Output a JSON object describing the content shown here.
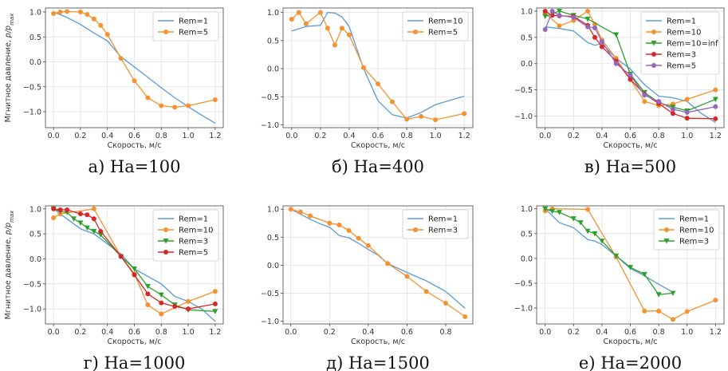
{
  "chart_data": [
    {
      "type": "line",
      "caption": "а) Ha=100",
      "xlabel": "Скорость, м/с",
      "ylabel": "Мгнитное давление, p/p_max",
      "xlim": [
        -0.06,
        1.26
      ],
      "ylim": [
        -1.32,
        1.08
      ],
      "xticks": [
        0.0,
        0.2,
        0.4,
        0.6,
        0.8,
        1.0,
        1.2
      ],
      "yticks": [
        1.0,
        0.5,
        0.0,
        -0.5,
        -1.0
      ],
      "legend_position": "top-right",
      "grid": true,
      "series": [
        {
          "name": "Rem=1",
          "color": "#5b9bd5",
          "marker": "none",
          "x": [
            0,
            0.1,
            0.2,
            0.3,
            0.4,
            0.5,
            0.6,
            0.7,
            0.8,
            0.9,
            1.0,
            1.1,
            1.2
          ],
          "y": [
            1.0,
            0.89,
            0.75,
            0.58,
            0.42,
            0.1,
            -0.1,
            -0.31,
            -0.52,
            -0.72,
            -0.9,
            -1.07,
            -1.23
          ]
        },
        {
          "name": "Rem=5",
          "color": "#f5922f",
          "marker": "circle",
          "x": [
            0,
            0.05,
            0.1,
            0.2,
            0.25,
            0.3,
            0.35,
            0.4,
            0.5,
            0.6,
            0.7,
            0.8,
            0.9,
            1.0,
            1.2
          ],
          "y": [
            0.97,
            1.0,
            1.01,
            1.0,
            0.95,
            0.86,
            0.73,
            0.55,
            0.07,
            -0.38,
            -0.72,
            -0.88,
            -0.91,
            -0.88,
            -0.76
          ]
        }
      ]
    },
    {
      "type": "line",
      "caption": "б) Ha=400",
      "xlabel": "Скорость, м/с",
      "ylabel": "",
      "xlim": [
        -0.06,
        1.26
      ],
      "ylim": [
        -1.05,
        1.08
      ],
      "xticks": [
        0.0,
        0.2,
        0.4,
        0.6,
        0.8,
        1.0,
        1.2
      ],
      "yticks": [
        1.0,
        0.5,
        0.0,
        -0.5,
        -1.0
      ],
      "legend_position": "top-right",
      "grid": true,
      "series": [
        {
          "name": "Rem=10",
          "color": "#5b9bd5",
          "marker": "none",
          "x": [
            0,
            0.1,
            0.2,
            0.25,
            0.3,
            0.35,
            0.4,
            0.5,
            0.6,
            0.7,
            0.8,
            0.9,
            1.0,
            1.2
          ],
          "y": [
            0.67,
            0.75,
            0.77,
            1.0,
            0.99,
            0.92,
            0.75,
            0.0,
            -0.57,
            -0.82,
            -0.88,
            -0.78,
            -0.64,
            -0.49
          ]
        },
        {
          "name": "Rem=5",
          "color": "#f5922f",
          "marker": "circle",
          "x": [
            0,
            0.05,
            0.1,
            0.2,
            0.25,
            0.3,
            0.35,
            0.4,
            0.5,
            0.6,
            0.7,
            0.8,
            0.9,
            1.0,
            1.2
          ],
          "y": [
            0.88,
            1.0,
            0.8,
            1.0,
            0.72,
            0.42,
            0.72,
            0.6,
            0.02,
            -0.27,
            -0.59,
            -0.9,
            -0.85,
            -0.91,
            -0.8
          ]
        }
      ]
    },
    {
      "type": "line",
      "caption": "в) Ha=500",
      "xlabel": "Скорость, м/с",
      "ylabel": "",
      "xlim": [
        -0.06,
        1.26
      ],
      "ylim": [
        -1.22,
        1.06
      ],
      "xticks": [
        0.0,
        0.2,
        0.4,
        0.6,
        0.8,
        1.0,
        1.2
      ],
      "yticks": [
        1.0,
        0.5,
        0.0,
        -0.5,
        -1.0
      ],
      "legend_position": "top-right",
      "grid": true,
      "series": [
        {
          "name": "Rem=1",
          "color": "#5b9bd5",
          "marker": "none",
          "x": [
            0,
            0.1,
            0.2,
            0.3,
            0.35,
            0.4,
            0.5,
            0.6,
            0.7,
            0.8,
            0.9,
            1.0,
            1.1,
            1.2
          ],
          "y": [
            0.7,
            0.67,
            0.62,
            0.4,
            0.35,
            0.38,
            0.1,
            -0.1,
            -0.4,
            -0.62,
            -0.65,
            -0.72,
            -0.95,
            -1.12
          ]
        },
        {
          "name": "Rem=10",
          "color": "#f5922f",
          "marker": "circle",
          "x": [
            0,
            0.1,
            0.2,
            0.3,
            0.35,
            0.4,
            0.5,
            0.6,
            0.7,
            0.8,
            0.9,
            1.0,
            1.2
          ],
          "y": [
            0.96,
            0.72,
            0.82,
            1.0,
            0.75,
            0.45,
            0.1,
            -0.3,
            -0.72,
            -0.8,
            -0.77,
            -0.68,
            -0.5
          ]
        },
        {
          "name": "Rem=10=inf",
          "color": "#2ca02c",
          "marker": "triangle",
          "x": [
            0,
            0.1,
            0.2,
            0.3,
            0.5,
            0.6,
            0.7,
            0.8,
            0.9,
            1.0,
            1.2
          ],
          "y": [
            0.9,
            1.0,
            0.92,
            0.85,
            0.55,
            -0.2,
            -0.55,
            -0.74,
            -0.83,
            -0.9,
            -0.68
          ]
        },
        {
          "name": "Rem=3",
          "color": "#d62728",
          "marker": "circle",
          "x": [
            0,
            0.05,
            0.1,
            0.2,
            0.3,
            0.35,
            0.4,
            0.5,
            0.6,
            0.7,
            0.8,
            0.9,
            1.0,
            1.2
          ],
          "y": [
            1.0,
            0.92,
            0.91,
            0.9,
            0.73,
            0.5,
            0.32,
            0.05,
            -0.3,
            -0.58,
            -0.76,
            -0.95,
            -1.04,
            -1.05
          ]
        },
        {
          "name": "Rem=5",
          "color": "#9467bd",
          "marker": "circle",
          "x": [
            0,
            0.05,
            0.1,
            0.2,
            0.3,
            0.35,
            0.4,
            0.5,
            0.6,
            0.7,
            0.8,
            0.9,
            1.0,
            1.2
          ],
          "y": [
            0.65,
            1.0,
            0.92,
            0.88,
            0.7,
            0.68,
            0.42,
            0.0,
            -0.22,
            -0.6,
            -0.72,
            -0.87,
            -0.93,
            -0.82
          ]
        }
      ]
    },
    {
      "type": "line",
      "caption": "г) Ha=1000",
      "xlabel": "Скорость, м/с",
      "ylabel": "Мгнитное давление, p/p_max",
      "xlim": [
        -0.06,
        1.26
      ],
      "ylim": [
        -1.3,
        1.06
      ],
      "xticks": [
        0.0,
        0.2,
        0.4,
        0.6,
        0.8,
        1.0,
        1.2
      ],
      "yticks": [
        1.0,
        0.5,
        0.0,
        -0.5,
        -1.0
      ],
      "legend_position": "top-right",
      "grid": true,
      "series": [
        {
          "name": "Rem=1",
          "color": "#5b9bd5",
          "marker": "none",
          "x": [
            0,
            0.1,
            0.2,
            0.3,
            0.4,
            0.5,
            0.6,
            0.7,
            0.8,
            0.9,
            1.0,
            1.1,
            1.2
          ],
          "y": [
            1.0,
            0.8,
            0.6,
            0.5,
            0.3,
            0.1,
            -0.2,
            -0.35,
            -0.5,
            -0.75,
            -0.85,
            -1.0,
            -1.25
          ]
        },
        {
          "name": "Rem=10",
          "color": "#f5922f",
          "marker": "circle",
          "x": [
            0,
            0.05,
            0.3,
            0.5,
            0.6,
            0.7,
            0.8,
            1.0,
            1.2
          ],
          "y": [
            0.82,
            0.9,
            1.0,
            0.05,
            -0.3,
            -0.92,
            -1.1,
            -0.85,
            -0.65
          ]
        },
        {
          "name": "Rem=3",
          "color": "#2ca02c",
          "marker": "triangle",
          "x": [
            0,
            0.05,
            0.1,
            0.15,
            0.2,
            0.25,
            0.3,
            0.35,
            0.5,
            0.6,
            0.7,
            0.8,
            0.9,
            1.0,
            1.2
          ],
          "y": [
            1.0,
            0.95,
            0.93,
            0.8,
            0.72,
            0.62,
            0.55,
            0.48,
            0.05,
            -0.2,
            -0.55,
            -0.72,
            -0.92,
            -1.02,
            -1.05
          ]
        },
        {
          "name": "Rem=5",
          "color": "#d62728",
          "marker": "circle",
          "x": [
            0,
            0.05,
            0.1,
            0.2,
            0.25,
            0.3,
            0.35,
            0.5,
            0.6,
            0.7,
            0.8,
            0.9,
            1.0,
            1.2
          ],
          "y": [
            1.0,
            0.98,
            0.98,
            0.9,
            0.88,
            0.8,
            0.55,
            0.05,
            -0.32,
            -0.7,
            -0.88,
            -0.95,
            -1.0,
            -0.9
          ]
        }
      ]
    },
    {
      "type": "line",
      "caption": "д) Ha=1500",
      "xlabel": "Скорость, м/с",
      "ylabel": "",
      "xlim": [
        -0.04,
        0.94
      ],
      "ylim": [
        -1.05,
        1.06
      ],
      "xticks": [
        0.0,
        0.2,
        0.4,
        0.6,
        0.8
      ],
      "yticks": [
        1.0,
        0.5,
        0.0,
        -0.5,
        -1.0
      ],
      "legend_position": "top-right",
      "grid": true,
      "series": [
        {
          "name": "Rem=1",
          "color": "#5b9bd5",
          "marker": "none",
          "x": [
            0,
            0.1,
            0.15,
            0.2,
            0.25,
            0.3,
            0.35,
            0.4,
            0.45,
            0.5,
            0.6,
            0.7,
            0.8,
            0.9
          ],
          "y": [
            1.0,
            0.82,
            0.74,
            0.68,
            0.53,
            0.49,
            0.39,
            0.28,
            0.18,
            0.03,
            -0.13,
            -0.28,
            -0.47,
            -0.77
          ]
        },
        {
          "name": "Rem=3",
          "color": "#f5922f",
          "marker": "circle",
          "x": [
            0,
            0.05,
            0.1,
            0.2,
            0.25,
            0.3,
            0.35,
            0.4,
            0.5,
            0.6,
            0.7,
            0.8,
            0.9
          ],
          "y": [
            1.0,
            0.95,
            0.88,
            0.75,
            0.72,
            0.62,
            0.48,
            0.35,
            0.03,
            -0.2,
            -0.47,
            -0.68,
            -0.92
          ]
        }
      ]
    },
    {
      "type": "line",
      "caption": "е) Ha=2000",
      "xlabel": "Скорость, м/с",
      "ylabel": "",
      "xlim": [
        -0.06,
        1.26
      ],
      "ylim": [
        -1.32,
        1.06
      ],
      "xticks": [
        0.0,
        0.2,
        0.4,
        0.6,
        0.8,
        1.0,
        1.2
      ],
      "yticks": [
        1.0,
        0.5,
        0.0,
        -0.5,
        -1.0
      ],
      "legend_position": "top-right",
      "grid": true,
      "series": [
        {
          "name": "Rem=1",
          "color": "#5b9bd5",
          "marker": "none",
          "x": [
            0,
            0.1,
            0.2,
            0.3,
            0.35,
            0.4,
            0.5,
            0.6,
            0.7,
            0.8,
            0.9
          ],
          "y": [
            1.0,
            0.72,
            0.62,
            0.38,
            0.35,
            0.28,
            0.05,
            -0.2,
            -0.35,
            -0.52,
            -0.68
          ]
        },
        {
          "name": "Rem=10",
          "color": "#f5922f",
          "marker": "circle",
          "x": [
            0,
            0.05,
            0.3,
            0.5,
            0.7,
            0.8,
            0.9,
            1.0,
            1.2
          ],
          "y": [
            0.96,
            1.0,
            0.99,
            0.03,
            -1.06,
            -1.06,
            -1.23,
            -1.07,
            -0.84
          ]
        },
        {
          "name": "Rem=3",
          "color": "#2ca02c",
          "marker": "triangle",
          "x": [
            0,
            0.05,
            0.1,
            0.2,
            0.25,
            0.3,
            0.35,
            0.4,
            0.5,
            0.6,
            0.7,
            0.8,
            0.9
          ],
          "y": [
            1.0,
            0.95,
            0.93,
            0.8,
            0.72,
            0.55,
            0.5,
            0.35,
            0.05,
            -0.18,
            -0.32,
            -0.73,
            -0.7
          ]
        }
      ]
    }
  ]
}
